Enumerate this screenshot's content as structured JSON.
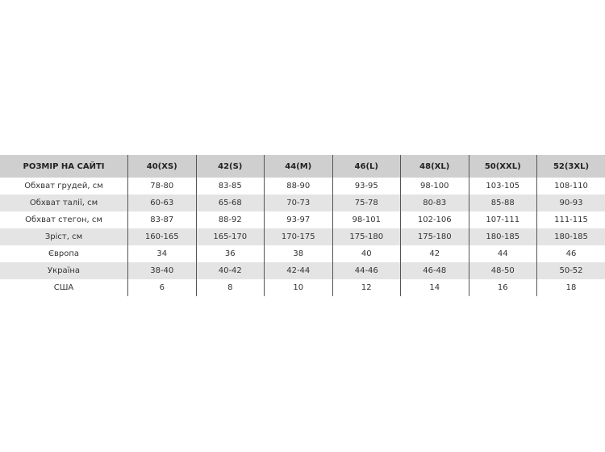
{
  "header": [
    "РОЗМІР НА САЙТІ",
    "40(XS)",
    "42(S)",
    "44(M)",
    "46(L)",
    "48(XL)",
    "50(XXL)",
    "52(3XL)"
  ],
  "rows": [
    [
      "Обхват грудей, см",
      "78-80",
      "83-85",
      "88-90",
      "93-95",
      "98-100",
      "103-105",
      "108-110"
    ],
    [
      "Обхват талії, см",
      "60-63",
      "65-68",
      "70-73",
      "75-78",
      "80-83",
      "85-88",
      "90-93"
    ],
    [
      "Обхват стегон, см",
      "83-87",
      "88-92",
      "93-97",
      "98-101",
      "102-106",
      "107-111",
      "111-115"
    ],
    [
      "Зріст, см",
      "160-165",
      "165-170",
      "170-175",
      "175-180",
      "175-180",
      "180-185",
      "180-185"
    ],
    [
      "Європа",
      "34",
      "36",
      "38",
      "40",
      "42",
      "44",
      "46"
    ],
    [
      "Україна",
      "38-40",
      "40-42",
      "42-44",
      "44-46",
      "46-48",
      "48-50",
      "50-52"
    ],
    [
      "США",
      "6",
      "8",
      "10",
      "12",
      "14",
      "16",
      "18"
    ]
  ]
}
